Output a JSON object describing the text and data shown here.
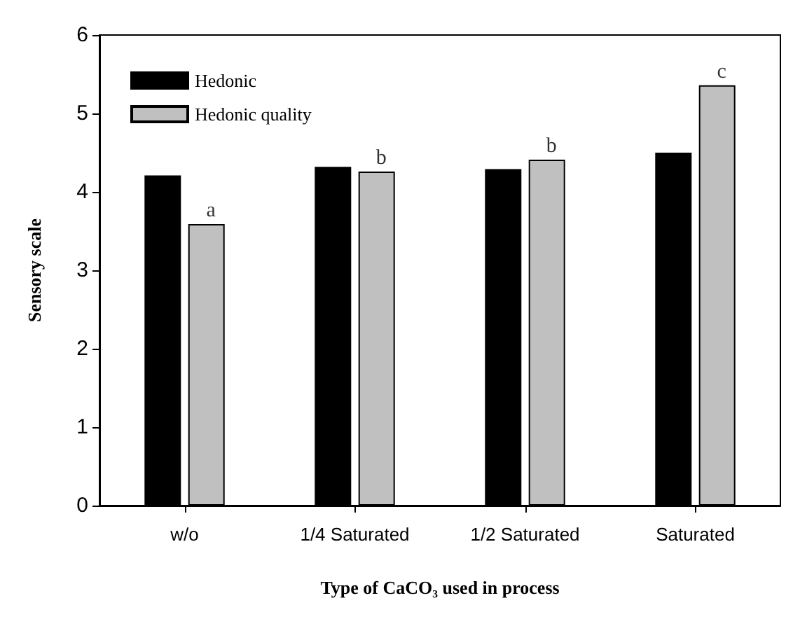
{
  "chart_data": {
    "type": "bar",
    "xlabel": "Type of CaCO₃ used in process",
    "ylabel": "Sensory scale",
    "categories": [
      "w/o",
      "1/4 Saturated",
      "1/2 Saturated",
      "Saturated"
    ],
    "series": [
      {
        "name": "Hedonic",
        "color": "#000000",
        "values": [
          4.21,
          4.32,
          4.29,
          4.5
        ]
      },
      {
        "name": "Hedonic quality",
        "color": "#c0c0c0",
        "values": [
          3.59,
          4.26,
          4.41,
          5.36
        ]
      }
    ],
    "ylim": [
      0,
      6
    ],
    "yticks": [
      0,
      1,
      2,
      3,
      4,
      5,
      6
    ],
    "grid": false,
    "legend": "top left",
    "annotations": [
      {
        "text": "a",
        "x": "w/o",
        "y": 3.59
      },
      {
        "text": "b",
        "x": "1/4 Saturated",
        "y": 4.26
      },
      {
        "text": "b",
        "x": "1/2 Saturated",
        "y": 4.41
      },
      {
        "text": "c",
        "x": "Saturated",
        "y": 5.36
      }
    ]
  }
}
